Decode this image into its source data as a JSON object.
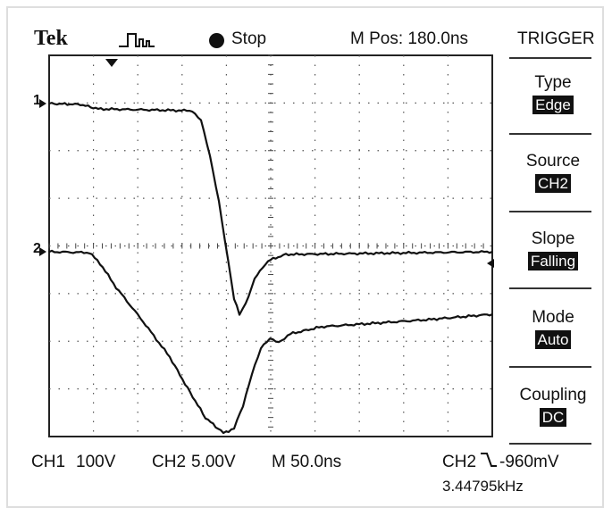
{
  "header": {
    "brand": "Tek",
    "run_state": "Stop",
    "m_pos": "M Pos: 180.0ns",
    "menu_title": "TRIGGER"
  },
  "trigger_menu": {
    "items": [
      {
        "label": "Type",
        "value": "Edge"
      },
      {
        "label": "Source",
        "value": "CH2"
      },
      {
        "label": "Slope",
        "value": "Falling"
      },
      {
        "label": "Mode",
        "value": "Auto"
      },
      {
        "label": "Coupling",
        "value": "DC"
      }
    ]
  },
  "channels": {
    "ch1_marker": "1",
    "ch2_marker": "2"
  },
  "status": {
    "ch1_label": "CH1",
    "ch1_scale": "100V",
    "ch2_label": "CH2",
    "ch2_scale": "5.00V",
    "timebase": "M 50.0ns",
    "trigger_source": "CH2",
    "trigger_level": "-960mV",
    "frequency": "3.44795kHz"
  },
  "icons": {
    "run_state_indicator": "filled-circle-icon",
    "trigger_position": "down-arrow-icon",
    "trigger_slope": "falling-edge-icon",
    "trigger_level_marker": "left-arrow-icon"
  }
}
